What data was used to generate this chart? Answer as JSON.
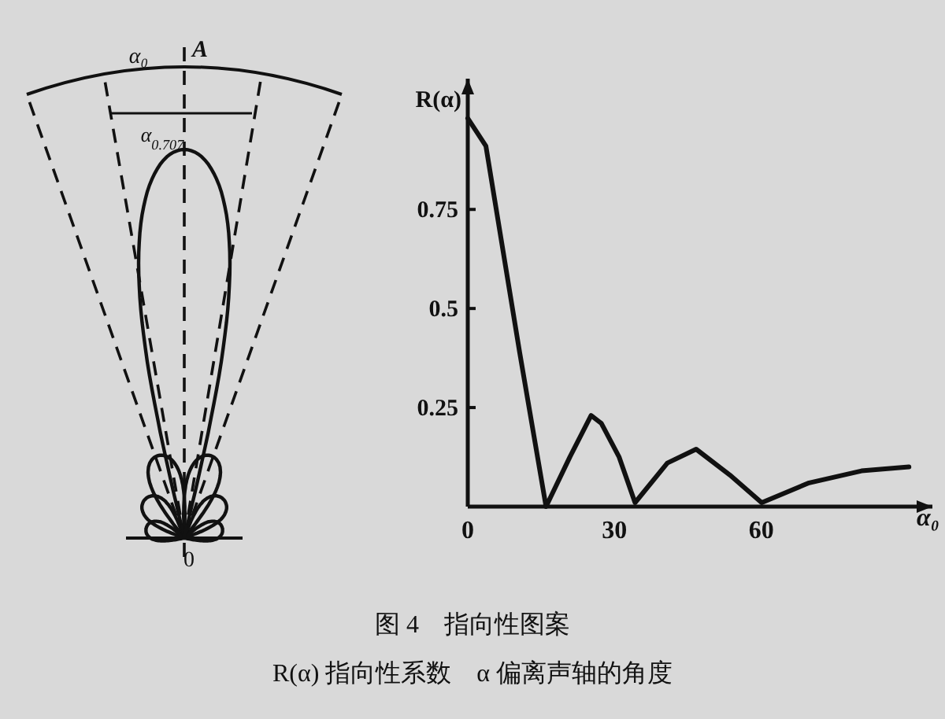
{
  "chart_data": [
    {
      "type": "other",
      "annotations": [
        "α₀",
        "A",
        "α$_{0.707}$",
        "0"
      ]
    },
    {
      "type": "line",
      "title": "图 4　指向性图案",
      "xlabel": "α₀",
      "ylabel": "R(α)",
      "annotations": [
        "R(α) 指向性系数　α 偏离声轴的角度"
      ],
      "xlim": [
        0,
        95
      ],
      "ylim": [
        0,
        1.08
      ],
      "xticks": [
        0,
        30,
        60
      ],
      "yticks": [
        0.25,
        0.5,
        0.75
      ],
      "grid": false,
      "series": [
        {
          "color": "#111111",
          "x": [
            0,
            3.7,
            10.6,
            16,
            20.9,
            25.2,
            27.3,
            30.9,
            34.2,
            40.8,
            46.7,
            53.6,
            60.1,
            69.8,
            80.5,
            90.2
          ],
          "values": [
            0.98,
            0.91,
            0.39,
            0.0,
            0.126,
            0.23,
            0.21,
            0.126,
            0.01,
            0.11,
            0.145,
            0.08,
            0.01,
            0.06,
            0.09,
            0.1
          ]
        }
      ]
    }
  ]
}
